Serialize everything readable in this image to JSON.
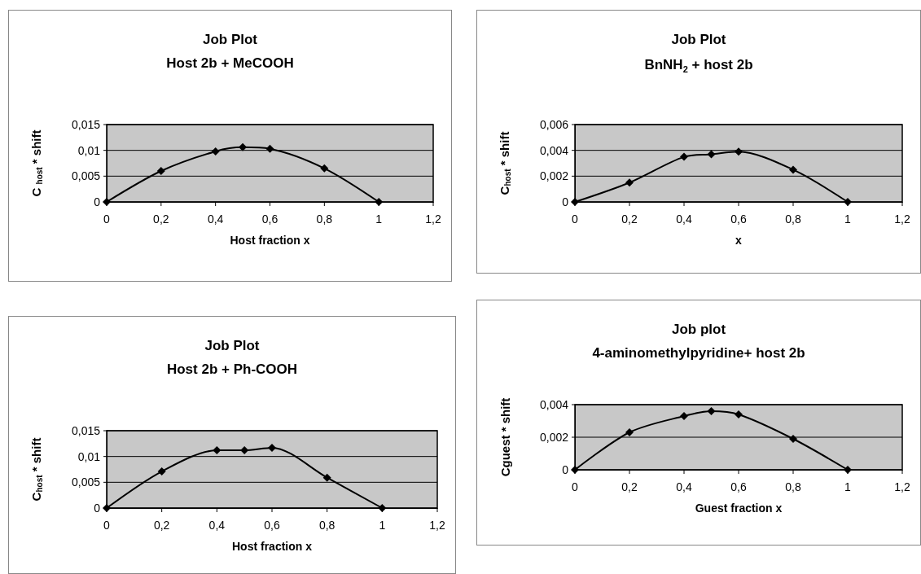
{
  "chart_data": [
    {
      "type": "line",
      "title": "Job Plot",
      "subtitle": "Host 2b + MeCOOH",
      "xlabel": "Host fraction x",
      "ylabel": "C $_{host}$ * shift",
      "x": [
        0,
        0.2,
        0.4,
        0.5,
        0.6,
        0.8,
        1
      ],
      "series": [
        {
          "color": "#000000",
          "values": [
            0,
            0.006,
            0.0098,
            0.0106,
            0.0103,
            0.0065,
            0
          ]
        }
      ],
      "xlim": [
        0,
        1.2
      ],
      "xticks": [
        {
          "value": 0,
          "label": "0"
        },
        {
          "value": 0.2,
          "label": "0,2"
        },
        {
          "value": 0.4,
          "label": "0,4"
        },
        {
          "value": 0.6,
          "label": "0,6"
        },
        {
          "value": 0.8,
          "label": "0,8"
        },
        {
          "value": 1,
          "label": "1"
        },
        {
          "value": 1.2,
          "label": "1,2"
        }
      ],
      "ylim": [
        0,
        0.015
      ],
      "yticks": [
        {
          "value": 0,
          "label": "0"
        },
        {
          "value": 0.005,
          "label": "0,005"
        },
        {
          "value": 0.01,
          "label": "0,01"
        },
        {
          "value": 0.015,
          "label": "0,015"
        }
      ],
      "grid": "y",
      "marker": "diamond",
      "line_style": "solid"
    },
    {
      "type": "line",
      "title": "Job Plot",
      "subtitle": "BnNH$_{2}$ + host 2b",
      "xlabel": "x",
      "ylabel": "C$_{host}$ * shift",
      "x": [
        0,
        0.2,
        0.4,
        0.5,
        0.6,
        0.8,
        1
      ],
      "series": [
        {
          "color": "#000000",
          "values": [
            0,
            0.0015,
            0.0035,
            0.0037,
            0.0039,
            0.0025,
            0
          ]
        }
      ],
      "xlim": [
        0,
        1.2
      ],
      "xticks": [
        {
          "value": 0,
          "label": "0"
        },
        {
          "value": 0.2,
          "label": "0,2"
        },
        {
          "value": 0.4,
          "label": "0,4"
        },
        {
          "value": 0.6,
          "label": "0,6"
        },
        {
          "value": 0.8,
          "label": "0,8"
        },
        {
          "value": 1,
          "label": "1"
        },
        {
          "value": 1.2,
          "label": "1,2"
        }
      ],
      "ylim": [
        0,
        0.006
      ],
      "yticks": [
        {
          "value": 0,
          "label": "0"
        },
        {
          "value": 0.002,
          "label": "0,002"
        },
        {
          "value": 0.004,
          "label": "0,004"
        },
        {
          "value": 0.006,
          "label": "0,006"
        }
      ],
      "grid": "y",
      "marker": "diamond",
      "line_style": "solid"
    },
    {
      "type": "line",
      "title": "Job Plot",
      "subtitle": "Host 2b + Ph-COOH",
      "xlabel": "Host fraction x",
      "ylabel": "C$_{host}$ * shift",
      "x": [
        0,
        0.2,
        0.4,
        0.5,
        0.6,
        0.8,
        1
      ],
      "series": [
        {
          "color": "#000000",
          "values": [
            0,
            0.0071,
            0.0112,
            0.0112,
            0.0117,
            0.0059,
            0
          ]
        }
      ],
      "xlim": [
        0,
        1.2
      ],
      "xticks": [
        {
          "value": 0,
          "label": "0"
        },
        {
          "value": 0.2,
          "label": "0,2"
        },
        {
          "value": 0.4,
          "label": "0,4"
        },
        {
          "value": 0.6,
          "label": "0,6"
        },
        {
          "value": 0.8,
          "label": "0,8"
        },
        {
          "value": 1,
          "label": "1"
        },
        {
          "value": 1.2,
          "label": "1,2"
        }
      ],
      "ylim": [
        0,
        0.015
      ],
      "yticks": [
        {
          "value": 0,
          "label": "0"
        },
        {
          "value": 0.005,
          "label": "0,005"
        },
        {
          "value": 0.01,
          "label": "0,01"
        },
        {
          "value": 0.015,
          "label": "0,015"
        }
      ],
      "grid": "y",
      "marker": "diamond",
      "line_style": "solid"
    },
    {
      "type": "line",
      "title": "Job plot",
      "subtitle": "4-aminomethylpyridine+ host 2b",
      "xlabel": "Guest fraction x",
      "ylabel": "Cguest * shift",
      "x": [
        0,
        0.2,
        0.4,
        0.5,
        0.6,
        0.8,
        1
      ],
      "series": [
        {
          "color": "#000000",
          "values": [
            0,
            0.0023,
            0.0033,
            0.0036,
            0.0034,
            0.0019,
            0
          ]
        }
      ],
      "xlim": [
        0,
        1.2
      ],
      "xticks": [
        {
          "value": 0,
          "label": "0"
        },
        {
          "value": 0.2,
          "label": "0,2"
        },
        {
          "value": 0.4,
          "label": "0,4"
        },
        {
          "value": 0.6,
          "label": "0,6"
        },
        {
          "value": 0.8,
          "label": "0,8"
        },
        {
          "value": 1,
          "label": "1"
        },
        {
          "value": 1.2,
          "label": "1,2"
        }
      ],
      "ylim": [
        0,
        0.004
      ],
      "yticks": [
        {
          "value": 0,
          "label": "0"
        },
        {
          "value": 0.002,
          "label": "0,002"
        },
        {
          "value": 0.004,
          "label": "0,004"
        }
      ],
      "grid": "y",
      "marker": "diamond",
      "line_style": "solid"
    }
  ]
}
